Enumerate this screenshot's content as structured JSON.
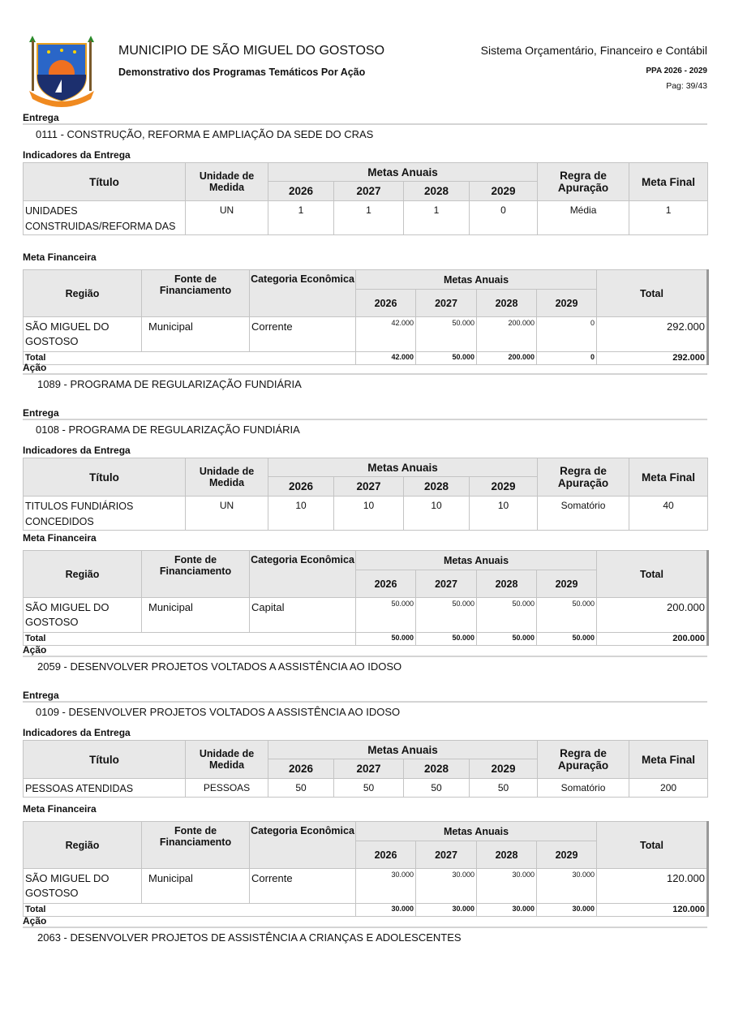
{
  "header": {
    "municipality": "MUNICIPIO DE SÃO MIGUEL DO GOSTOSO",
    "report_title": "Demonstrativo dos Programas Temáticos Por Ação",
    "system": "Sistema Orçamentário, Financeiro e Contábil",
    "ppa": "PPA 2026 - 2029",
    "page": "Pag: 39/43",
    "logo_text": "SÃO MIGUEL DO GOSTOSO"
  },
  "labels": {
    "entrega": "Entrega",
    "acao": "Ação",
    "indicadores": "Indicadores da Entrega",
    "meta_financeira": "Meta Financeira",
    "ind_headers": {
      "titulo": "Título",
      "unidade": "Unidade de Medida",
      "metas": "Metas Anuais",
      "regra": "Regra de Apuração",
      "meta_final": "Meta Final"
    },
    "fin_headers": {
      "regiao": "Região",
      "fonte": "Fonte de Financiamento",
      "categoria": "Categoria Econômica",
      "metas": "Metas Anuais",
      "total": "Total"
    },
    "years": [
      "2026",
      "2027",
      "2028",
      "2029"
    ],
    "total_row": "Total"
  },
  "blocks": [
    {
      "type": "entrega",
      "text": "0111 - CONSTRUÇÃO, REFORMA E AMPLIAÇÃO DA SEDE DO CRAS"
    },
    {
      "type": "indicadores",
      "rows": [
        {
          "titulo": "UNIDADES CONSTRUIDAS/REFORMA DAS",
          "unidade": "UN",
          "metas": [
            "1",
            "1",
            "1",
            "0"
          ],
          "regra": "Média",
          "meta_final": "1"
        }
      ]
    },
    {
      "type": "financeira",
      "rows": [
        {
          "regiao": "SÃO MIGUEL DO GOSTOSO",
          "fonte": "Municipal",
          "categoria": "Corrente",
          "metas": [
            "42.000",
            "50.000",
            "200.000",
            "0"
          ],
          "total": "292.000"
        }
      ],
      "totals": [
        "42.000",
        "50.000",
        "200.000",
        "0"
      ],
      "grand_total": "292.000"
    },
    {
      "type": "acao",
      "text": "1089 - PROGRAMA DE REGULARIZAÇÃO FUNDIÁRIA"
    },
    {
      "type": "entrega",
      "text": "0108 - PROGRAMA DE REGULARIZAÇÃO FUNDIÁRIA"
    },
    {
      "type": "indicadores",
      "rows": [
        {
          "titulo": "TITULOS FUNDIÁRIOS CONCEDIDOS",
          "unidade": "UN",
          "metas": [
            "10",
            "10",
            "10",
            "10"
          ],
          "regra": "Somatório",
          "meta_final": "40"
        }
      ]
    },
    {
      "type": "financeira",
      "rows": [
        {
          "regiao": "SÃO MIGUEL DO GOSTOSO",
          "fonte": "Municipal",
          "categoria": "Capital",
          "metas": [
            "50.000",
            "50.000",
            "50.000",
            "50.000"
          ],
          "total": "200.000"
        }
      ],
      "totals": [
        "50.000",
        "50.000",
        "50.000",
        "50.000"
      ],
      "grand_total": "200.000"
    },
    {
      "type": "acao",
      "text": "2059 - DESENVOLVER PROJETOS VOLTADOS A ASSISTÊNCIA AO IDOSO"
    },
    {
      "type": "entrega",
      "text": "0109 - DESENVOLVER PROJETOS VOLTADOS A ASSISTÊNCIA AO IDOSO"
    },
    {
      "type": "indicadores",
      "rows": [
        {
          "titulo": "PESSOAS ATENDIDAS",
          "unidade": "PESSOAS",
          "metas": [
            "50",
            "50",
            "50",
            "50"
          ],
          "regra": "Somatório",
          "meta_final": "200"
        }
      ]
    },
    {
      "type": "financeira",
      "rows": [
        {
          "regiao": "SÃO MIGUEL DO GOSTOSO",
          "fonte": "Municipal",
          "categoria": "Corrente",
          "metas": [
            "30.000",
            "30.000",
            "30.000",
            "30.000"
          ],
          "total": "120.000"
        }
      ],
      "totals": [
        "30.000",
        "30.000",
        "30.000",
        "30.000"
      ],
      "grand_total": "120.000"
    },
    {
      "type": "acao",
      "text": "2063 - DESENVOLVER PROJETOS DE ASSISTÊNCIA A CRIANÇAS E ADOLESCENTES"
    }
  ]
}
